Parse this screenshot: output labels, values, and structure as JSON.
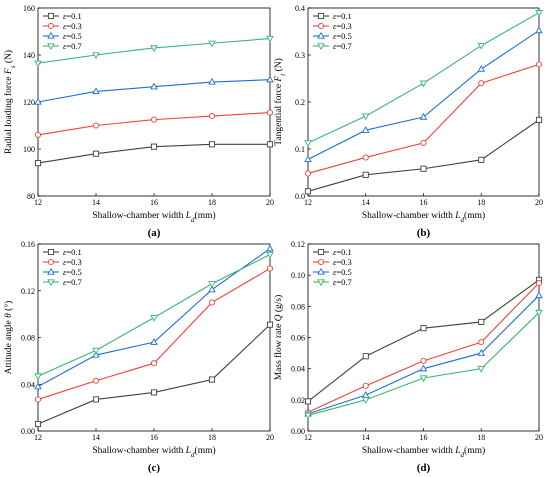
{
  "chart_data": [
    {
      "type": "line",
      "panel": "(a)",
      "x": [
        12,
        14,
        16,
        18,
        20
      ],
      "xlim": [
        12,
        20
      ],
      "xticks": [
        "12",
        "14",
        "16",
        "18",
        "20"
      ],
      "ylim": [
        80,
        160
      ],
      "yticks": [
        "80",
        "100",
        "120",
        "140",
        "160"
      ],
      "xlabel": "Shallow-chamber width L_d(mm)",
      "ylabel": "Radial loading force F_s (N)",
      "legend_position": "top-left",
      "series": [
        {
          "name": "ε=0.1",
          "color": "#404040",
          "marker": "square",
          "values": [
            94,
            98,
            101,
            102,
            102
          ]
        },
        {
          "name": "ε=0.3",
          "color": "#e8443a",
          "marker": "circle",
          "values": [
            106,
            110,
            112.5,
            114,
            115.5
          ]
        },
        {
          "name": "ε=0.5",
          "color": "#1f6fd1",
          "marker": "triangle-up",
          "values": [
            120,
            124.5,
            126.5,
            128.5,
            129.5
          ]
        },
        {
          "name": "ε=0.7",
          "color": "#3cb371",
          "marker": "triangle-down",
          "values": [
            136.5,
            140,
            143,
            145,
            147
          ]
        }
      ]
    },
    {
      "type": "line",
      "panel": "(b)",
      "x": [
        12,
        14,
        16,
        18,
        20
      ],
      "xlim": [
        12,
        20
      ],
      "xticks": [
        "12",
        "14",
        "16",
        "18",
        "20"
      ],
      "ylim": [
        0,
        0.4
      ],
      "yticks": [
        "0.0",
        "0.1",
        "0.2",
        "0.3",
        "0.4"
      ],
      "xlabel": "Shallow-chamber width L_d(mm)",
      "ylabel": "Tangential force F_t (N)",
      "legend_position": "top-left",
      "series": [
        {
          "name": "ε=0.1",
          "color": "#404040",
          "marker": "square",
          "values": [
            0.01,
            0.045,
            0.058,
            0.077,
            0.162
          ]
        },
        {
          "name": "ε=0.3",
          "color": "#e8443a",
          "marker": "circle",
          "values": [
            0.048,
            0.082,
            0.113,
            0.24,
            0.28
          ]
        },
        {
          "name": "ε=0.5",
          "color": "#1f6fd1",
          "marker": "triangle-up",
          "values": [
            0.078,
            0.14,
            0.168,
            0.27,
            0.352
          ]
        },
        {
          "name": "ε=0.7",
          "color": "#3cb371",
          "marker": "triangle-down",
          "values": [
            0.113,
            0.17,
            0.24,
            0.32,
            0.39
          ]
        }
      ]
    },
    {
      "type": "line",
      "panel": "(c)",
      "x": [
        12,
        14,
        16,
        18,
        20
      ],
      "xlim": [
        12,
        20
      ],
      "xticks": [
        "12",
        "14",
        "16",
        "18",
        "20"
      ],
      "ylim": [
        0,
        0.16
      ],
      "yticks": [
        "0.00",
        "0.04",
        "0.08",
        "0.12",
        "0.16"
      ],
      "xlabel": "Shallow-chamber width L_d(mm)",
      "ylabel": "Attitude angle θ (°)",
      "legend_position": "top-left",
      "series": [
        {
          "name": "ε=0.1",
          "color": "#404040",
          "marker": "square",
          "values": [
            0.006,
            0.027,
            0.033,
            0.044,
            0.091
          ]
        },
        {
          "name": "ε=0.3",
          "color": "#e8443a",
          "marker": "circle",
          "values": [
            0.027,
            0.043,
            0.058,
            0.11,
            0.139
          ]
        },
        {
          "name": "ε=0.5",
          "color": "#1f6fd1",
          "marker": "triangle-up",
          "values": [
            0.038,
            0.065,
            0.076,
            0.121,
            0.156
          ]
        },
        {
          "name": "ε=0.7",
          "color": "#3cb371",
          "marker": "triangle-down",
          "values": [
            0.047,
            0.069,
            0.097,
            0.126,
            0.151
          ]
        }
      ]
    },
    {
      "type": "line",
      "panel": "(d)",
      "x": [
        12,
        14,
        16,
        18,
        20
      ],
      "xlim": [
        12,
        20
      ],
      "xticks": [
        "12",
        "14",
        "16",
        "18",
        "20"
      ],
      "ylim": [
        0,
        0.12
      ],
      "yticks": [
        "0.00",
        "0.02",
        "0.04",
        "0.06",
        "0.08",
        "0.10",
        "0.12"
      ],
      "xlabel": "Shallow-chamber width L_d(mm)",
      "ylabel": "Mass flow rate Q (g/s)",
      "legend_position": "top-left",
      "series": [
        {
          "name": "ε=0.1",
          "color": "#404040",
          "marker": "square",
          "values": [
            0.019,
            0.048,
            0.066,
            0.07,
            0.097
          ]
        },
        {
          "name": "ε=0.3",
          "color": "#e8443a",
          "marker": "circle",
          "values": [
            0.012,
            0.029,
            0.045,
            0.057,
            0.095
          ]
        },
        {
          "name": "ε=0.5",
          "color": "#1f6fd1",
          "marker": "triangle-up",
          "values": [
            0.011,
            0.023,
            0.04,
            0.05,
            0.087
          ]
        },
        {
          "name": "ε=0.7",
          "color": "#3cb371",
          "marker": "triangle-down",
          "values": [
            0.01,
            0.02,
            0.034,
            0.04,
            0.076
          ]
        }
      ]
    }
  ]
}
